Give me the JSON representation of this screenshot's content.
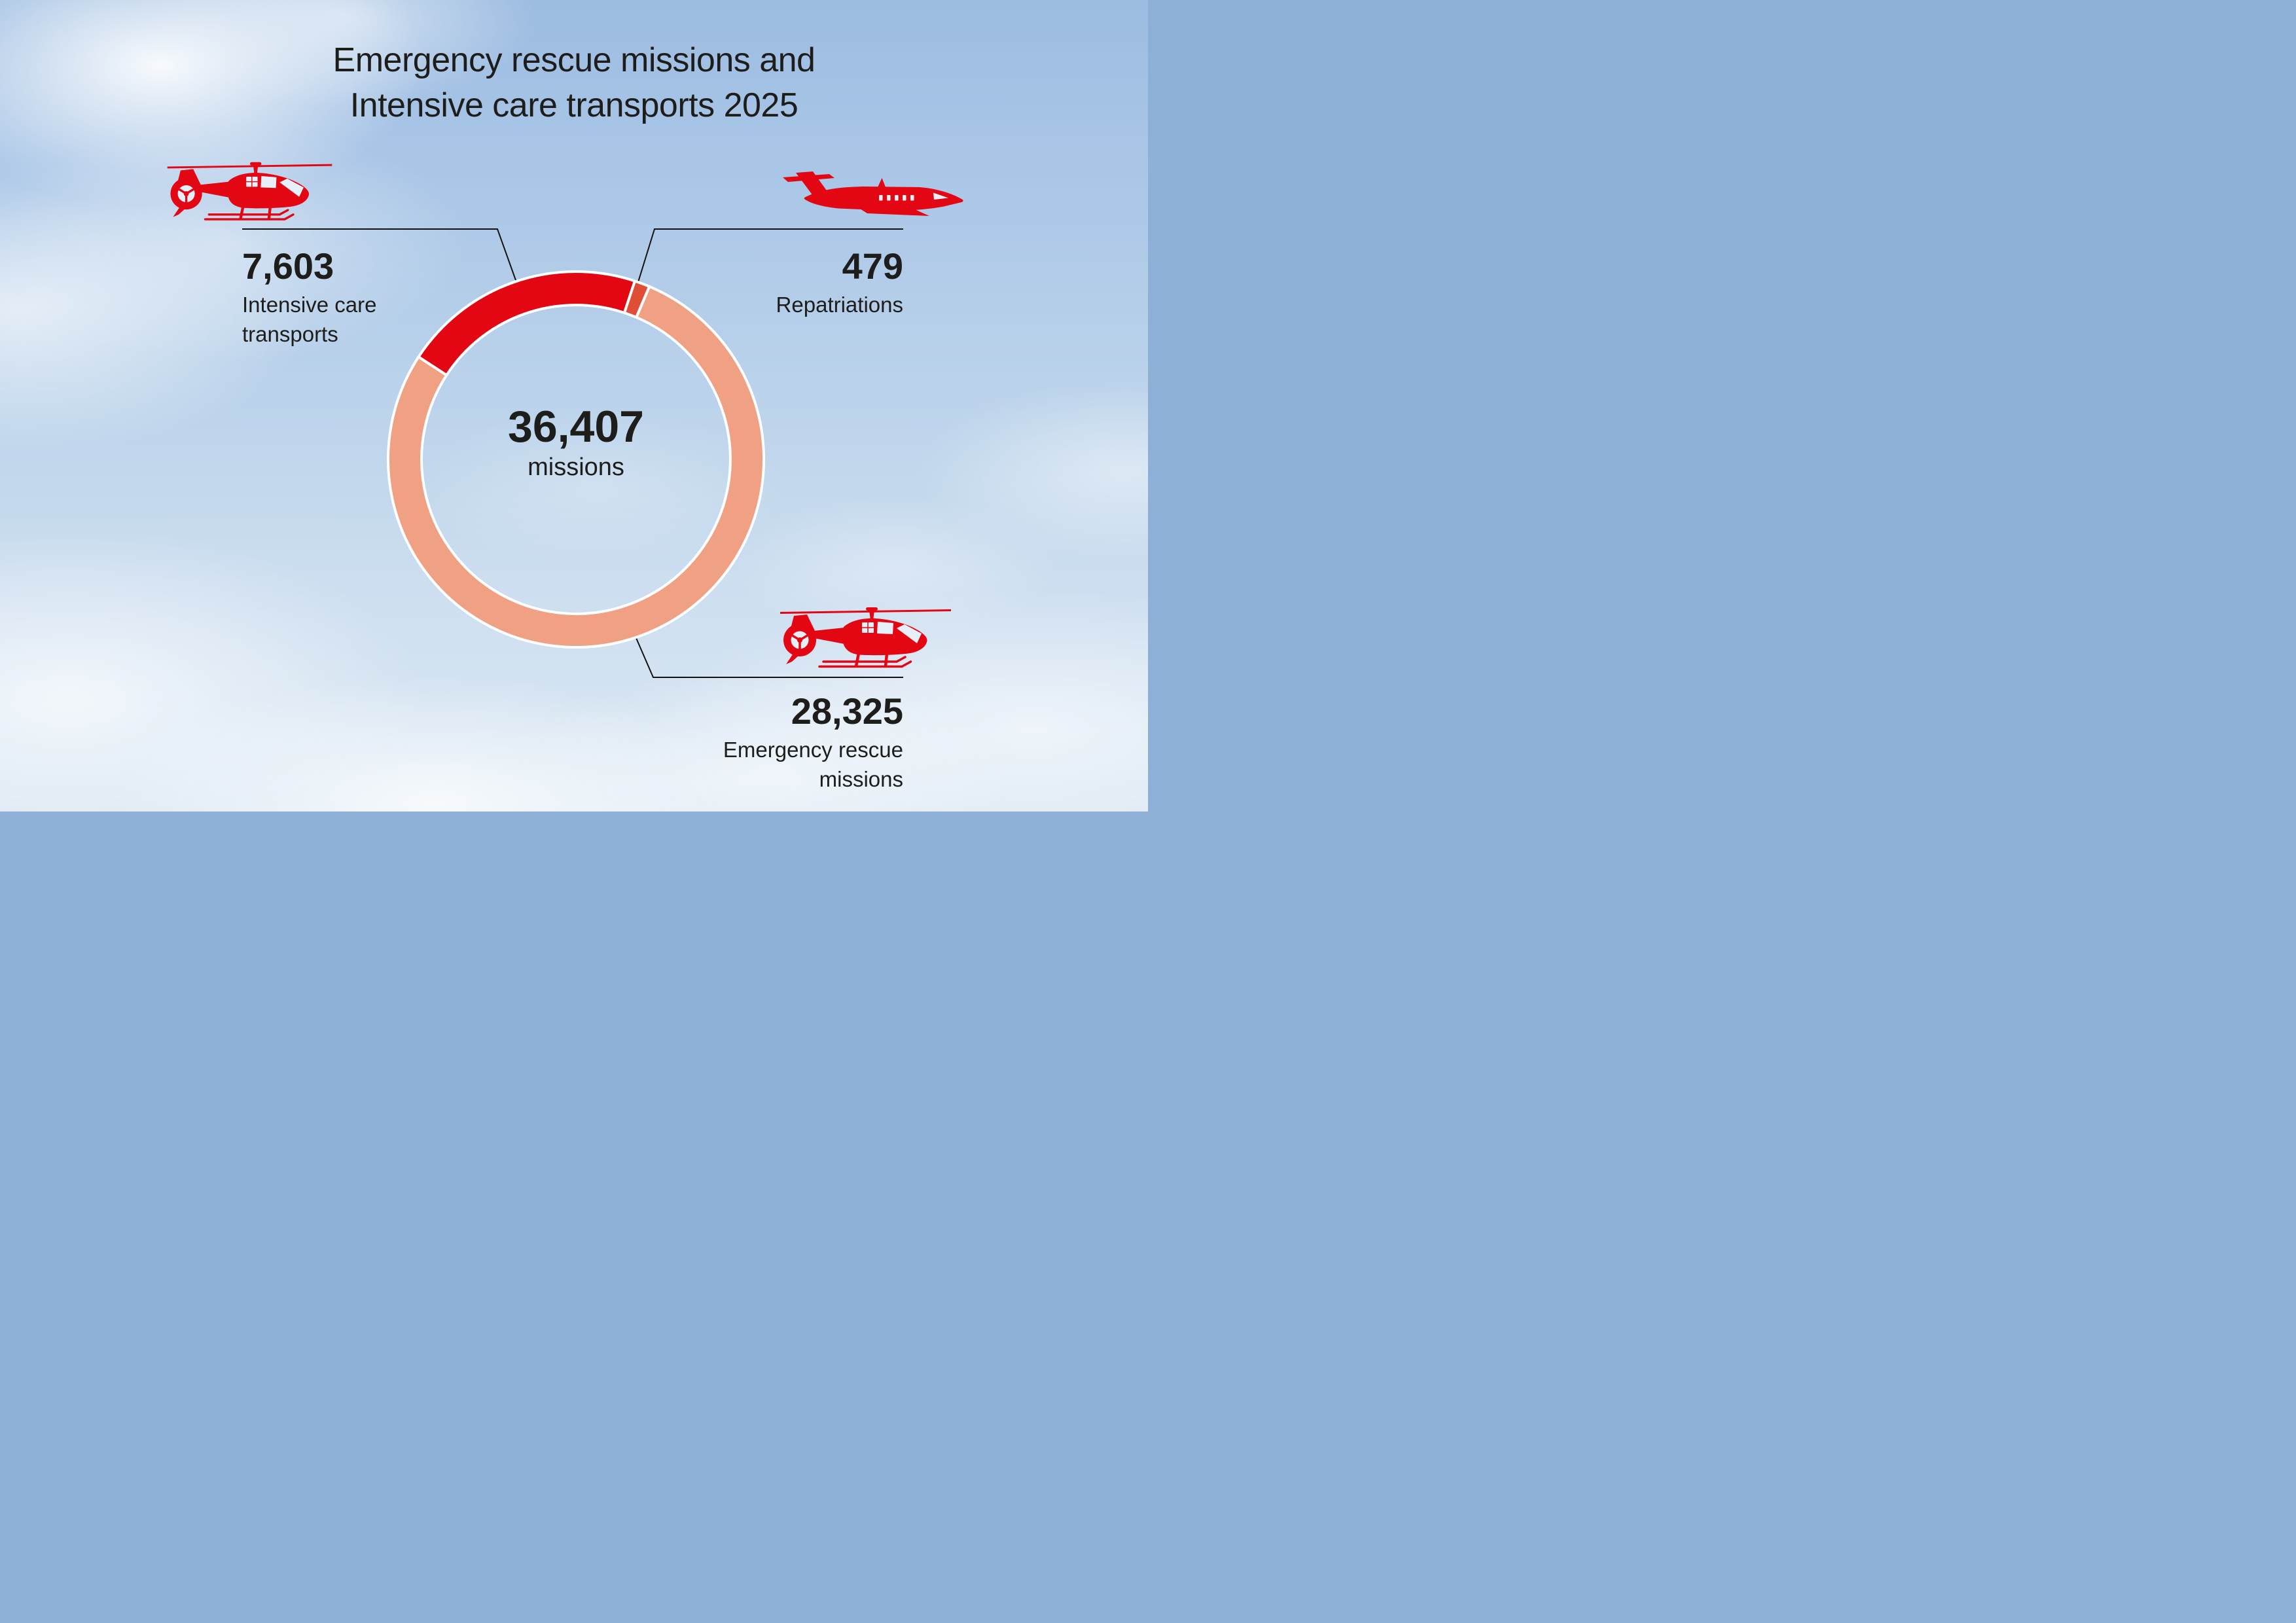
{
  "title": {
    "line1": "Emergency rescue missions and",
    "line2": "Intensive care transports 2025"
  },
  "donut_center": {
    "value": "36,407",
    "label": "missions"
  },
  "chart_data": {
    "type": "pie",
    "subtype": "donut",
    "title": "Emergency rescue missions and Intensive care transports 2025",
    "total": 36407,
    "total_display": "36,407",
    "center_label": "missions",
    "segments": [
      {
        "label": "Emergency rescue missions",
        "value": 28325,
        "display_value": "28,325",
        "color": "#f0a183"
      },
      {
        "label": "Intensive care transports",
        "value": 7603,
        "display_value": "7,603",
        "color": "#e30613"
      },
      {
        "label": "Repatriations",
        "value": 479,
        "display_value": "479",
        "color": "#df4f35"
      }
    ],
    "layout": {
      "start_angle_deg": 23,
      "inner_radius_ratio": 0.822,
      "separator_color": "#ffffff",
      "legend": "callouts-with-leader-lines",
      "grid": false
    }
  },
  "callouts": {
    "intensive": {
      "value": "7,603",
      "line1": "Intensive care",
      "line2": "transports",
      "icon": "helicopter-icon",
      "align": "left"
    },
    "repatriations": {
      "value": "479",
      "line1": "Repatriations",
      "icon": "jet-icon",
      "align": "right"
    },
    "emergency": {
      "value": "28,325",
      "line1": "Emergency rescue",
      "line2": "missions",
      "icon": "helicopter-icon",
      "align": "right"
    }
  },
  "icons": {
    "helicopter-icon": "red rescue helicopter silhouette, side view facing right",
    "jet-icon": "red ambulance jet silhouette, side view facing right"
  },
  "colors": {
    "accent_red": "#e30613",
    "mid_red": "#df4f35",
    "salmon": "#f0a183",
    "text": "#1d1d1b",
    "leader_line": "#121212",
    "separator": "#ffffff",
    "sky_top": "#9cbce1",
    "sky_bottom": "#d9e7f3"
  }
}
